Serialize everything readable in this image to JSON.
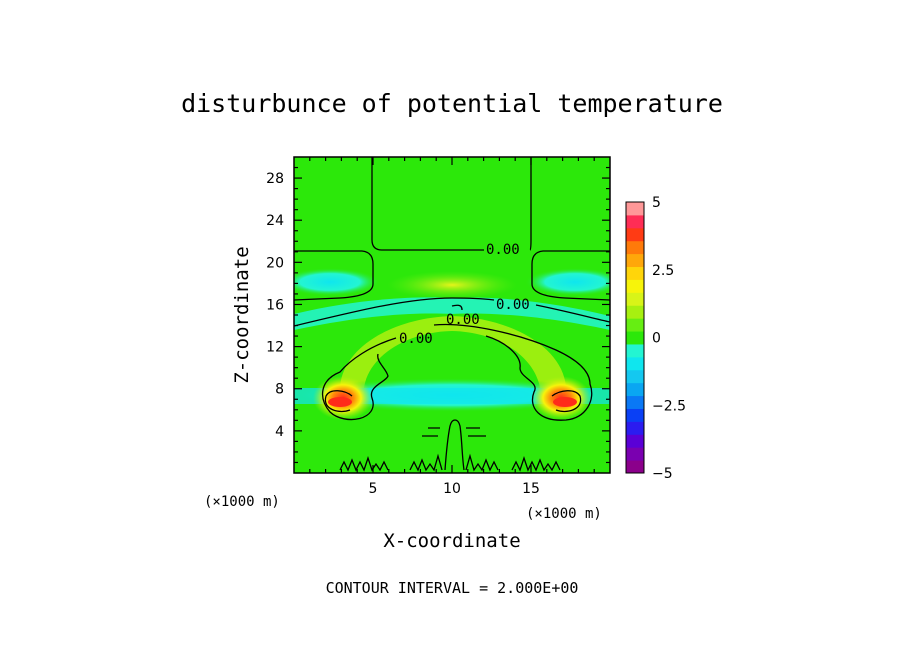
{
  "chart_data": {
    "type": "heatmap",
    "title": "disturbunce of potential temperature",
    "xlabel": "X-coordinate",
    "ylabel": "Z-coordinate",
    "x_unit": "(×1000 m)",
    "z_unit": "(×1000 m)",
    "xlim": [
      0,
      20
    ],
    "ylim": [
      0,
      30
    ],
    "x_ticks": [
      5,
      10,
      15
    ],
    "y_ticks": [
      4,
      8,
      12,
      16,
      20,
      24,
      28
    ],
    "colorbar": {
      "range": [
        -5,
        5
      ],
      "tick_labels": [
        "5",
        "2.5",
        "0",
        "-2.5",
        "-5"
      ],
      "tick_values": [
        5,
        2.5,
        0,
        -2.5,
        -5
      ],
      "levels": 20,
      "palette": [
        "#8b008b",
        "#7a00b0",
        "#5a00d6",
        "#2b1cf0",
        "#0a40f5",
        "#0a78f5",
        "#0aa6f2",
        "#14c8f0",
        "#0fe6ee",
        "#23f5d2",
        "#2ce80a",
        "#66ee12",
        "#a7f010",
        "#d8f418",
        "#f7f40a",
        "#ffd50a",
        "#ffa70a",
        "#ff7a0a",
        "#ff3b14",
        "#ff2d55",
        "#ff9898"
      ]
    },
    "contour_labels": [
      "0.00",
      "0.00",
      "0.00",
      "0.00"
    ],
    "contour_interval_text": "CONTOUR INTERVAL = 2.000E+00",
    "features": [
      {
        "name": "warm cores",
        "x": [
          3.0,
          17.0
        ],
        "z": 6.8,
        "value": 3.5
      },
      {
        "name": "cool band",
        "z_range": [
          6,
          8
        ],
        "value": -1.2
      },
      {
        "name": "cool arc",
        "z": 16,
        "value": -1.5
      },
      {
        "name": "warm arch",
        "z_range": [
          8,
          15
        ],
        "value": 1.0
      }
    ]
  }
}
